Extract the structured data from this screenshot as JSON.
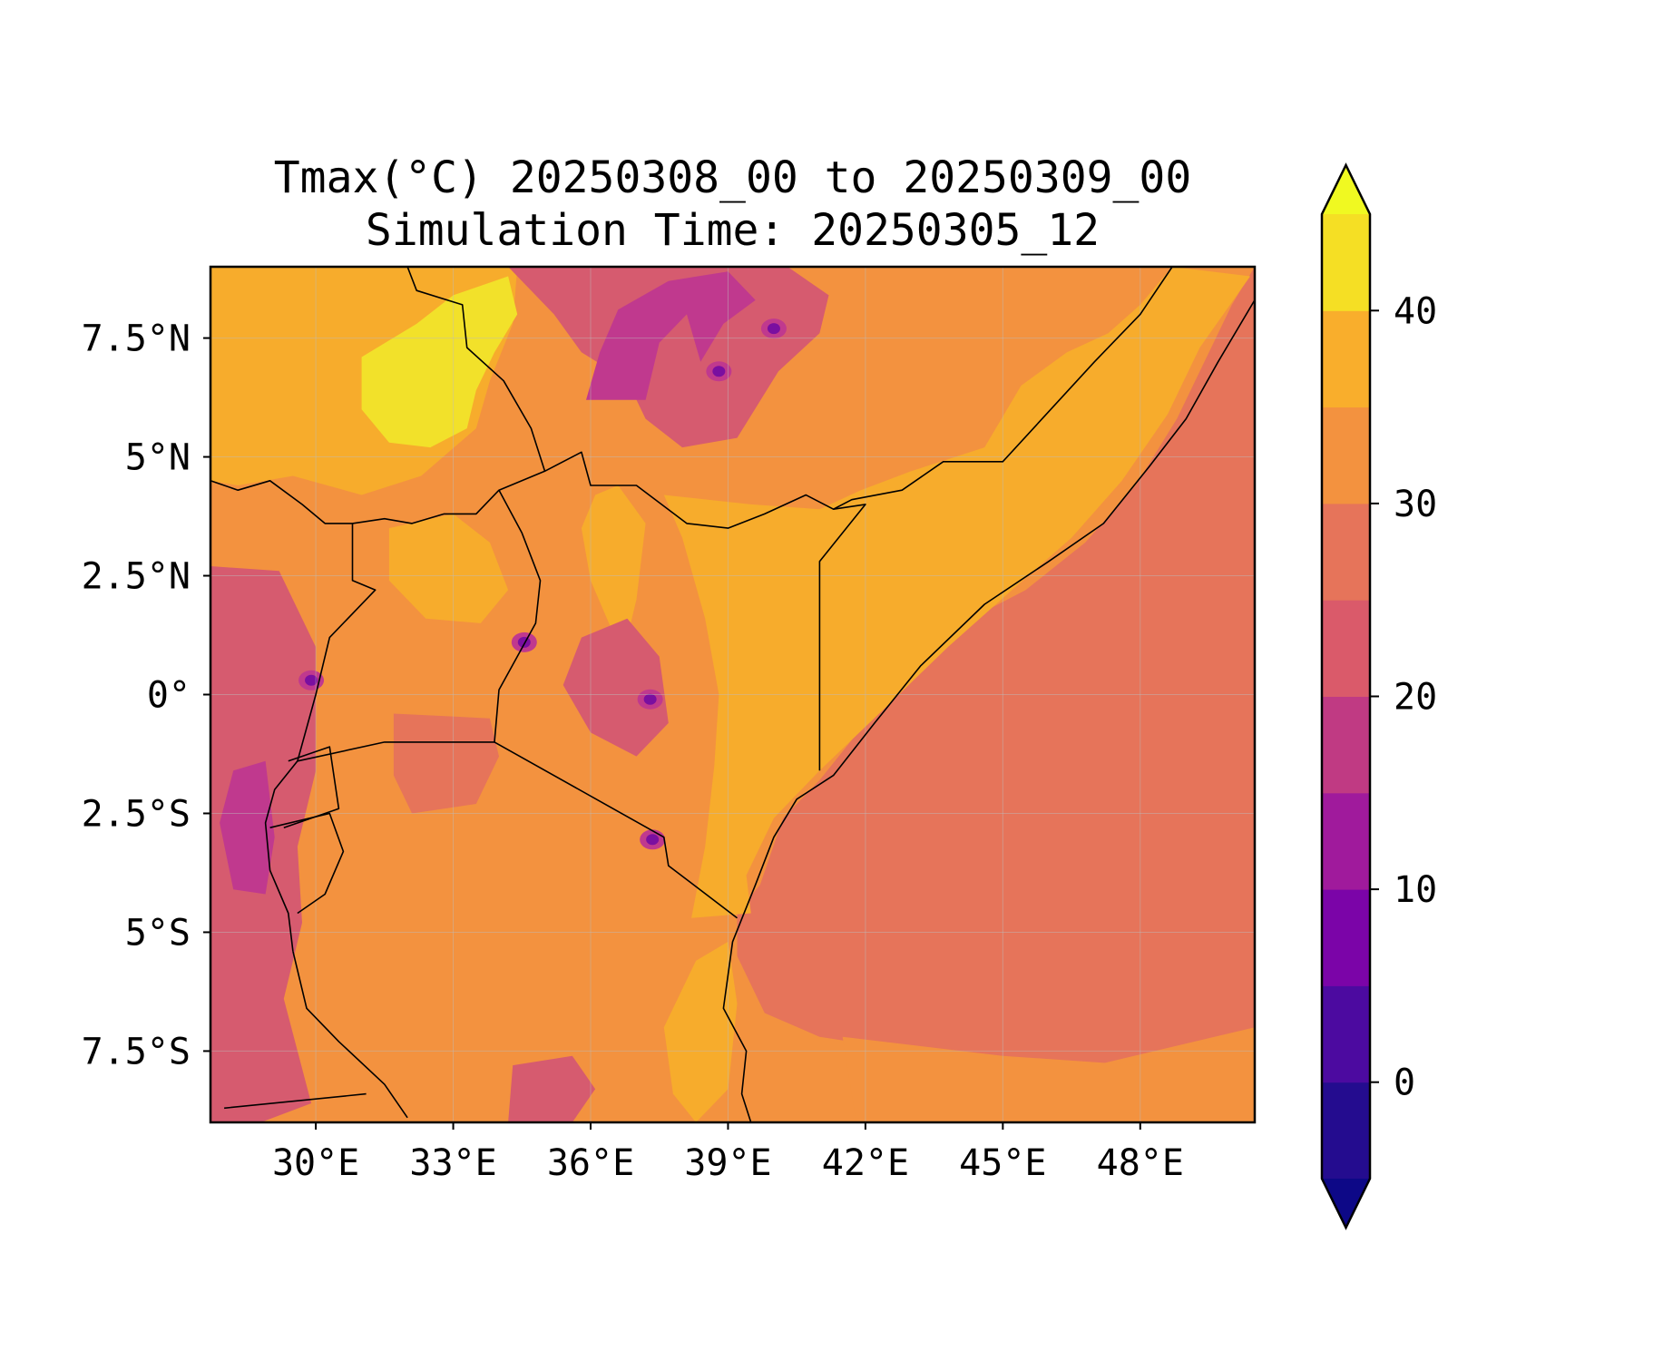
{
  "title": {
    "line1": "Tmax(°C) 20250308_00 to 20250309_00",
    "line2": "Simulation Time: 20250305_12"
  },
  "map": {
    "lon_range": [
      27.7,
      50.5
    ],
    "lat_range": [
      -9.0,
      9.0
    ],
    "lon_ticks": [
      {
        "value": 30,
        "label": "30°E"
      },
      {
        "value": 33,
        "label": "33°E"
      },
      {
        "value": 36,
        "label": "36°E"
      },
      {
        "value": 39,
        "label": "39°E"
      },
      {
        "value": 42,
        "label": "42°E"
      },
      {
        "value": 45,
        "label": "45°E"
      },
      {
        "value": 48,
        "label": "48°E"
      }
    ],
    "lat_ticks": [
      {
        "value": 7.5,
        "label": "7.5°N"
      },
      {
        "value": 5,
        "label": "5°N"
      },
      {
        "value": 2.5,
        "label": "2.5°N"
      },
      {
        "value": 0,
        "label": "0°"
      },
      {
        "value": -2.5,
        "label": "2.5°S"
      },
      {
        "value": -5,
        "label": "5°S"
      },
      {
        "value": -7.5,
        "label": "7.5°S"
      }
    ],
    "gridlines": true,
    "field": "Tmax (°C)",
    "colors": {
      "ocean_warm": "#e6745a",
      "land_hot": "#f7ac2c",
      "land_warm": "#f3923f",
      "hottest": "#f2e12a",
      "cool": "#d65b6f",
      "cooler": "#c0398e",
      "coldest": "#7a0fa0",
      "border": "#000000"
    }
  },
  "colorbar": {
    "range": [
      -5,
      45
    ],
    "levels": [
      -5,
      0,
      5,
      10,
      15,
      20,
      25,
      30,
      35,
      40,
      45
    ],
    "colors": [
      "#240c8f",
      "#4c0aa0",
      "#7b04a8",
      "#a01a9c",
      "#c03a83",
      "#da5a6a",
      "#e6745a",
      "#f3923f",
      "#f9ae2c",
      "#f5df24"
    ],
    "under_color": "#0d0887",
    "over_color": "#f0f921",
    "ticks": [
      {
        "value": 0,
        "label": "0"
      },
      {
        "value": 10,
        "label": "10"
      },
      {
        "value": 20,
        "label": "20"
      },
      {
        "value": 30,
        "label": "30"
      },
      {
        "value": 40,
        "label": "40"
      }
    ],
    "extend": "both"
  }
}
